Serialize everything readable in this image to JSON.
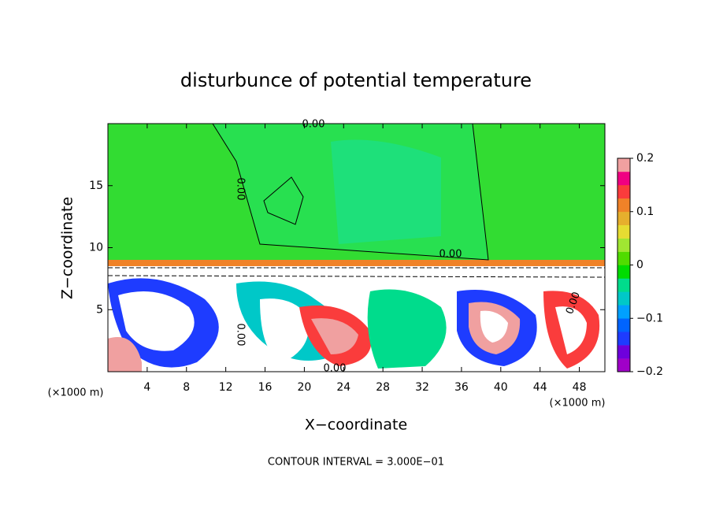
{
  "chart_data": {
    "type": "heatmap",
    "title": "disturbunce of potential temperature",
    "x_label": "X−coordinate",
    "y_label": "Z−coordinate",
    "x_unit_labels": [
      "(×1000 m)",
      "(×1000 m)"
    ],
    "footer": "CONTOUR INTERVAL = 3.000E−01",
    "contour_labels": [
      "0.00",
      "0.00",
      "0.00",
      "0.00",
      "0.00",
      "0.00"
    ],
    "xlim": [
      0,
      50.6
    ],
    "ylim": [
      0,
      20
    ],
    "xticks": [
      4,
      8,
      12,
      16,
      20,
      24,
      28,
      32,
      36,
      40,
      44,
      48
    ],
    "yticks": [
      5,
      10,
      15
    ],
    "colorbar": {
      "lim": [
        -0.2,
        0.2
      ],
      "ticks": [
        0.2,
        0.1,
        0,
        {
          "value": -0.1,
          "label": "−0.1"
        },
        {
          "value": -0.2,
          "label": "−0.2"
        }
      ],
      "colors": [
        "#a000c8",
        "#6e00dc",
        "#1e3cff",
        "#0064ff",
        "#00a0ff",
        "#00c8c8",
        "#00dc8c",
        "#00dc00",
        "#50dc00",
        "#a0e632",
        "#e6dc32",
        "#e6af2d",
        "#f08228",
        "#fa3c3c",
        "#f00082",
        "#f0a0a0"
      ]
    }
  }
}
